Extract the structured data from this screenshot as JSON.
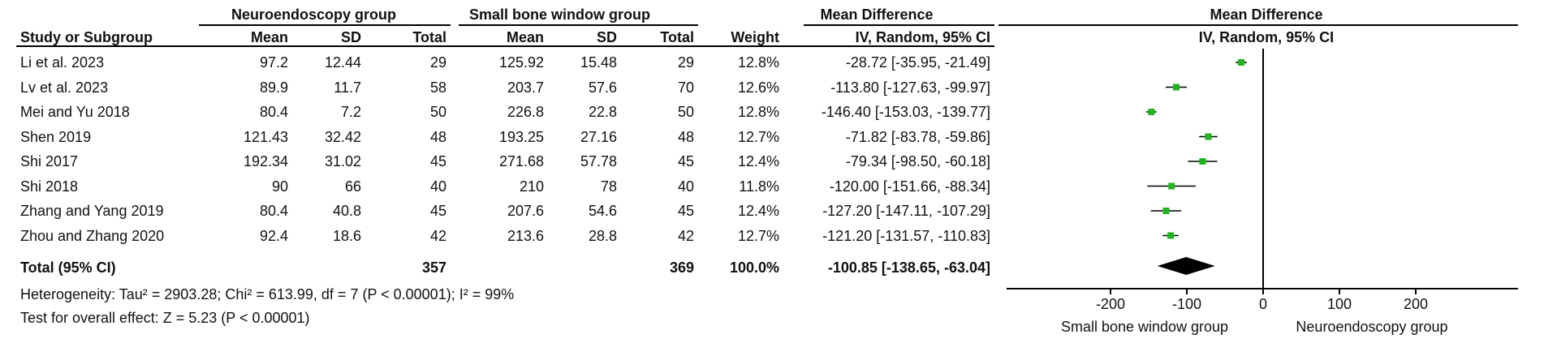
{
  "headers": {
    "group1": "Neuroendoscopy group",
    "group2": "Small bone window group",
    "study": "Study or Subgroup",
    "mean": "Mean",
    "sd": "SD",
    "total": "Total",
    "weight": "Weight",
    "md_title": "Mean Difference",
    "md_sub": "IV, Random, 95% CI",
    "plot_title": "Mean Difference",
    "plot_sub": "IV, Random, 95% CI"
  },
  "studies": [
    {
      "name": "Li et al. 2023",
      "m1": "97.2",
      "sd1": "12.44",
      "n1": "29",
      "m2": "125.92",
      "sd2": "15.48",
      "n2": "29",
      "weight": "12.8%",
      "ci": "-28.72 [-35.95, -21.49]"
    },
    {
      "name": "Lv et al. 2023",
      "m1": "89.9",
      "sd1": "11.7",
      "n1": "58",
      "m2": "203.7",
      "sd2": "57.6",
      "n2": "70",
      "weight": "12.6%",
      "ci": "-113.80 [-127.63, -99.97]"
    },
    {
      "name": "Mei and Yu 2018",
      "m1": "80.4",
      "sd1": "7.2",
      "n1": "50",
      "m2": "226.8",
      "sd2": "22.8",
      "n2": "50",
      "weight": "12.8%",
      "ci": "-146.40 [-153.03, -139.77]"
    },
    {
      "name": "Shen 2019",
      "m1": "121.43",
      "sd1": "32.42",
      "n1": "48",
      "m2": "193.25",
      "sd2": "27.16",
      "n2": "48",
      "weight": "12.7%",
      "ci": "-71.82 [-83.78, -59.86]"
    },
    {
      "name": "Shi 2017",
      "m1": "192.34",
      "sd1": "31.02",
      "n1": "45",
      "m2": "271.68",
      "sd2": "57.78",
      "n2": "45",
      "weight": "12.4%",
      "ci": "-79.34 [-98.50, -60.18]"
    },
    {
      "name": "Shi  2018",
      "m1": "90",
      "sd1": "66",
      "n1": "40",
      "m2": "210",
      "sd2": "78",
      "n2": "40",
      "weight": "11.8%",
      "ci": "-120.00 [-151.66, -88.34]"
    },
    {
      "name": "Zhang and Yang 2019",
      "m1": "80.4",
      "sd1": "40.8",
      "n1": "45",
      "m2": "207.6",
      "sd2": "54.6",
      "n2": "45",
      "weight": "12.4%",
      "ci": "-127.20 [-147.11, -107.29]"
    },
    {
      "name": "Zhou and Zhang 2020",
      "m1": "92.4",
      "sd1": "18.6",
      "n1": "42",
      "m2": "213.6",
      "sd2": "28.8",
      "n2": "42",
      "weight": "12.7%",
      "ci": "-121.20 [-131.57, -110.83]"
    }
  ],
  "total": {
    "label": "Total (95% CI)",
    "n1": "357",
    "n2": "369",
    "weight": "100.0%",
    "ci": "-100.85 [-138.65, -63.04]"
  },
  "heterogeneity": "Heterogeneity: Tau² = 2903.28; Chi² = 613.99, df = 7 (P < 0.00001); I² = 99%",
  "overall_effect": "Test for overall effect: Z = 5.23 (P < 0.00001)",
  "axis_left_label": "Small bone window group",
  "axis_right_label": "Neuroendoscopy group",
  "colors": {
    "marker": "#22b222",
    "line": "#000000"
  },
  "chart_data": {
    "type": "scatter",
    "x_axis": {
      "ticks": [
        -200,
        -100,
        0,
        100,
        200
      ],
      "tick_labels": [
        "-200",
        "-100",
        "0",
        "100",
        "200"
      ]
    },
    "xlim": [
      -300,
      300
    ],
    "studies": [
      {
        "md": -28.72,
        "lo": -35.95,
        "hi": -21.49
      },
      {
        "md": -113.8,
        "lo": -127.63,
        "hi": -99.97
      },
      {
        "md": -146.4,
        "lo": -153.03,
        "hi": -139.77
      },
      {
        "md": -71.82,
        "lo": -83.78,
        "hi": -59.86
      },
      {
        "md": -79.34,
        "lo": -98.5,
        "hi": -60.18
      },
      {
        "md": -120.0,
        "lo": -151.66,
        "hi": -88.34
      },
      {
        "md": -127.2,
        "lo": -147.11,
        "hi": -107.29
      },
      {
        "md": -121.2,
        "lo": -131.57,
        "hi": -110.83
      }
    ],
    "pooled": {
      "md": -100.85,
      "lo": -138.65,
      "hi": -63.04
    }
  }
}
